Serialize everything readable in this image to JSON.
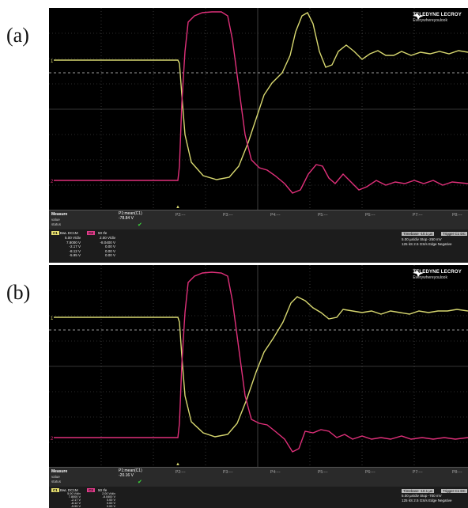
{
  "panels": [
    {
      "id": "a",
      "label": "(a)",
      "logo": {
        "brand": "TELEDYNE LECROY",
        "tagline": "Everywhereyoulook"
      },
      "measure": {
        "title": "Measure",
        "row1": "value",
        "row2": "status",
        "p1_name": "P1:mean(C1)",
        "p1_value": "-78.84 V"
      },
      "params": [
        "P2:---",
        "P3:---",
        "P4:---",
        "P5:---",
        "P6:---",
        "P7:---",
        "P8:---"
      ],
      "c1": {
        "badge": "C1",
        "head": "BwL DC1M",
        "values": [
          "5.00 V/div",
          "7.8000 V",
          "-2.17 V",
          "-8.12 V",
          "-5.95 V"
        ]
      },
      "c2": {
        "badge": "C2",
        "head": "50 Ife",
        "values": [
          "2.00 V/div",
          "-8.0400 V",
          "0.00 V",
          "0.00 V",
          "0.00 V"
        ]
      },
      "timebase": {
        "tb_label": "Timebase",
        "tb_value": "-10.1 µs",
        "trig_label": "Trigger",
        "trig_ch": "C1 DC",
        "rows": [
          "5.00 µs/div   Stop   -250 mV",
          "125 kS   2.5 GS/s   Edge   Negative"
        ]
      }
    },
    {
      "id": "b",
      "label": "(b)",
      "logo": {
        "brand": "TELEDYNE LECROY",
        "tagline": "Everywhereyoulook"
      },
      "measure": {
        "title": "Measure",
        "row1": "value",
        "row2": "status",
        "p1_name": "P1:mean(C1)",
        "p1_value": "-20.16 V"
      },
      "params": [
        "P2:---",
        "P3:---",
        "P4:---",
        "P5:---",
        "P6:---",
        "P7:---",
        "P8:---"
      ],
      "c1": {
        "badge": "C1",
        "head": "BwL DC1M",
        "values": [
          "5.00 V/div",
          "7.8000 V",
          "-2.17 V",
          "-8.12 V",
          "-5.95 V"
        ]
      },
      "c2": {
        "badge": "C2",
        "head": "50 Ife",
        "values": [
          "2.00 V/div",
          "-8.0400 V",
          "0.00 V",
          "0.00 V",
          "0.00 V"
        ]
      },
      "timebase": {
        "tb_label": "Timebase",
        "tb_value": "-10.1 µs",
        "trig_label": "Trigger",
        "trig_ch": "C1 DC",
        "rows": [
          "5.00 µs/div   Stop   -700 mV",
          "125 kS   2.5 GS/s   Edge   Negative"
        ]
      }
    }
  ],
  "colors": {
    "yellow_trace": "#d8d870",
    "magenta_trace": "#e0307a",
    "grid": "#5a5a5a",
    "background": "#000000"
  }
}
